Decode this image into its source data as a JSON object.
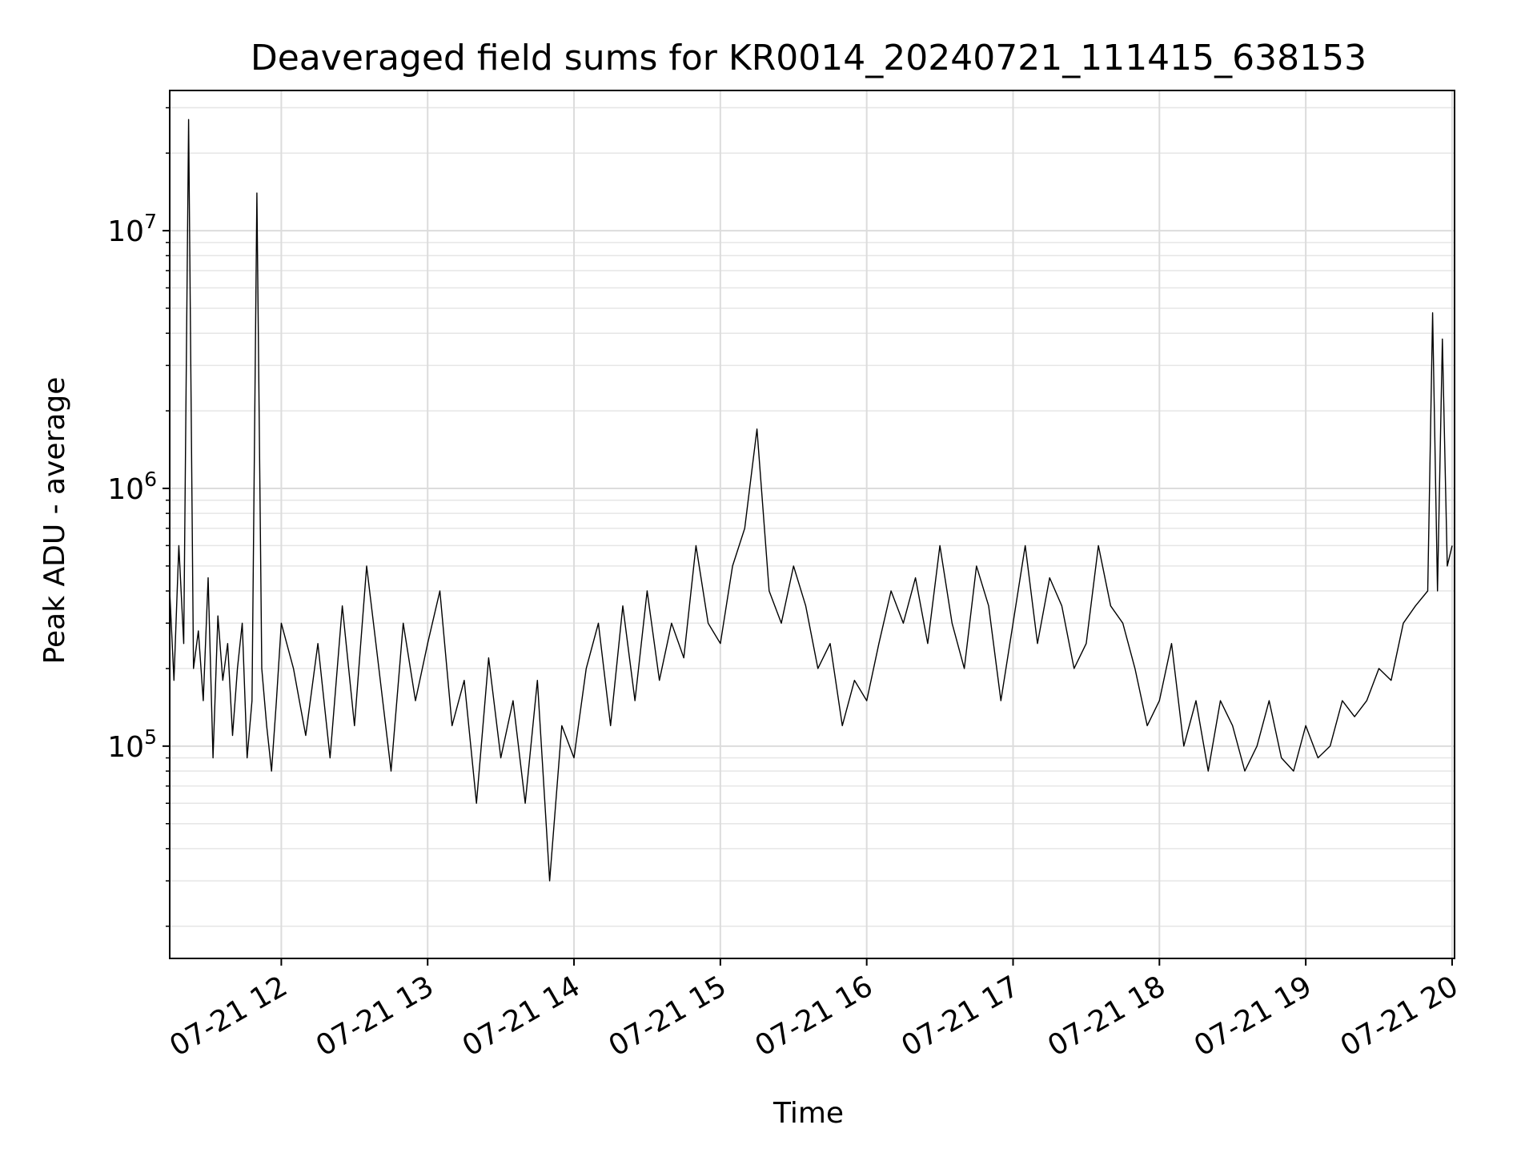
{
  "chart_data": {
    "type": "line",
    "title": "Deaveraged field sums for KR0014_20240721_111415_638153",
    "xlabel": "Time",
    "ylabel": "Peak ADU - average",
    "y_scale": "log",
    "ylim": [
      15000,
      35000000
    ],
    "xlim": [
      "2024-07-21 11:14:15",
      "2024-07-21 20:01:00"
    ],
    "grid": "major and minor, light gray",
    "line_color": "#000000",
    "x_ticks": [
      {
        "value": "2024-07-21 12:00",
        "label": "07-21 12"
      },
      {
        "value": "2024-07-21 13:00",
        "label": "07-21 13"
      },
      {
        "value": "2024-07-21 14:00",
        "label": "07-21 14"
      },
      {
        "value": "2024-07-21 15:00",
        "label": "07-21 15"
      },
      {
        "value": "2024-07-21 16:00",
        "label": "07-21 16"
      },
      {
        "value": "2024-07-21 17:00",
        "label": "07-21 17"
      },
      {
        "value": "2024-07-21 18:00",
        "label": "07-21 18"
      },
      {
        "value": "2024-07-21 19:00",
        "label": "07-21 19"
      },
      {
        "value": "2024-07-21 20:00",
        "label": "07-21 20"
      }
    ],
    "y_ticks": [
      {
        "value": 100000,
        "base": "10",
        "exp": "5"
      },
      {
        "value": 1000000,
        "base": "10",
        "exp": "6"
      },
      {
        "value": 10000000,
        "base": "10",
        "exp": "7"
      }
    ],
    "series": [
      {
        "x": [
          "2024-07-21 11:14:15",
          "2024-07-21 11:16",
          "2024-07-21 11:18",
          "2024-07-21 11:20",
          "2024-07-21 11:22",
          "2024-07-21 11:24",
          "2024-07-21 11:26",
          "2024-07-21 11:28",
          "2024-07-21 11:30",
          "2024-07-21 11:32",
          "2024-07-21 11:34",
          "2024-07-21 11:36",
          "2024-07-21 11:38",
          "2024-07-21 11:40",
          "2024-07-21 11:42",
          "2024-07-21 11:44",
          "2024-07-21 11:46",
          "2024-07-21 11:48",
          "2024-07-21 11:50",
          "2024-07-21 11:52",
          "2024-07-21 11:54",
          "2024-07-21 11:56",
          "2024-07-21 11:58",
          "2024-07-21 12:00",
          "2024-07-21 12:05",
          "2024-07-21 12:10",
          "2024-07-21 12:15",
          "2024-07-21 12:20",
          "2024-07-21 12:25",
          "2024-07-21 12:30",
          "2024-07-21 12:35",
          "2024-07-21 12:40",
          "2024-07-21 12:45",
          "2024-07-21 12:50",
          "2024-07-21 12:55",
          "2024-07-21 13:00",
          "2024-07-21 13:05",
          "2024-07-21 13:10",
          "2024-07-21 13:15",
          "2024-07-21 13:20",
          "2024-07-21 13:25",
          "2024-07-21 13:30",
          "2024-07-21 13:35",
          "2024-07-21 13:40",
          "2024-07-21 13:45",
          "2024-07-21 13:50",
          "2024-07-21 13:55",
          "2024-07-21 14:00",
          "2024-07-21 14:05",
          "2024-07-21 14:10",
          "2024-07-21 14:15",
          "2024-07-21 14:20",
          "2024-07-21 14:25",
          "2024-07-21 14:30",
          "2024-07-21 14:35",
          "2024-07-21 14:40",
          "2024-07-21 14:45",
          "2024-07-21 14:50",
          "2024-07-21 14:55",
          "2024-07-21 15:00",
          "2024-07-21 15:05",
          "2024-07-21 15:10",
          "2024-07-21 15:15",
          "2024-07-21 15:20",
          "2024-07-21 15:25",
          "2024-07-21 15:30",
          "2024-07-21 15:35",
          "2024-07-21 15:40",
          "2024-07-21 15:45",
          "2024-07-21 15:50",
          "2024-07-21 15:55",
          "2024-07-21 16:00",
          "2024-07-21 16:05",
          "2024-07-21 16:10",
          "2024-07-21 16:15",
          "2024-07-21 16:20",
          "2024-07-21 16:25",
          "2024-07-21 16:30",
          "2024-07-21 16:35",
          "2024-07-21 16:40",
          "2024-07-21 16:45",
          "2024-07-21 16:50",
          "2024-07-21 16:55",
          "2024-07-21 17:00",
          "2024-07-21 17:05",
          "2024-07-21 17:10",
          "2024-07-21 17:15",
          "2024-07-21 17:20",
          "2024-07-21 17:25",
          "2024-07-21 17:30",
          "2024-07-21 17:35",
          "2024-07-21 17:40",
          "2024-07-21 17:45",
          "2024-07-21 17:50",
          "2024-07-21 17:55",
          "2024-07-21 18:00",
          "2024-07-21 18:05",
          "2024-07-21 18:10",
          "2024-07-21 18:15",
          "2024-07-21 18:20",
          "2024-07-21 18:25",
          "2024-07-21 18:30",
          "2024-07-21 18:35",
          "2024-07-21 18:40",
          "2024-07-21 18:45",
          "2024-07-21 18:50",
          "2024-07-21 18:55",
          "2024-07-21 19:00",
          "2024-07-21 19:05",
          "2024-07-21 19:10",
          "2024-07-21 19:15",
          "2024-07-21 19:20",
          "2024-07-21 19:25",
          "2024-07-21 19:30",
          "2024-07-21 19:35",
          "2024-07-21 19:40",
          "2024-07-21 19:45",
          "2024-07-21 19:50",
          "2024-07-21 19:52",
          "2024-07-21 19:54",
          "2024-07-21 19:56",
          "2024-07-21 19:58",
          "2024-07-21 20:00"
        ],
        "y": [
          400000,
          180000,
          600000,
          250000,
          27000000,
          200000,
          280000,
          150000,
          450000,
          90000,
          320000,
          180000,
          250000,
          110000,
          200000,
          300000,
          90000,
          150000,
          14000000,
          200000,
          120000,
          80000,
          150000,
          300000,
          200000,
          110000,
          250000,
          90000,
          350000,
          120000,
          500000,
          200000,
          80000,
          300000,
          150000,
          250000,
          400000,
          120000,
          180000,
          60000,
          220000,
          90000,
          150000,
          60000,
          180000,
          30000,
          120000,
          90000,
          200000,
          300000,
          120000,
          350000,
          150000,
          400000,
          180000,
          300000,
          220000,
          600000,
          300000,
          250000,
          500000,
          700000,
          1700000,
          400000,
          300000,
          500000,
          350000,
          200000,
          250000,
          120000,
          180000,
          150000,
          250000,
          400000,
          300000,
          450000,
          250000,
          600000,
          300000,
          200000,
          500000,
          350000,
          150000,
          300000,
          600000,
          250000,
          450000,
          350000,
          200000,
          250000,
          600000,
          350000,
          300000,
          200000,
          120000,
          150000,
          250000,
          100000,
          150000,
          80000,
          150000,
          120000,
          80000,
          100000,
          150000,
          90000,
          80000,
          120000,
          90000,
          100000,
          150000,
          130000,
          150000,
          200000,
          180000,
          300000,
          350000,
          400000,
          4800000,
          400000,
          3800000,
          500000,
          600000
        ]
      }
    ]
  }
}
